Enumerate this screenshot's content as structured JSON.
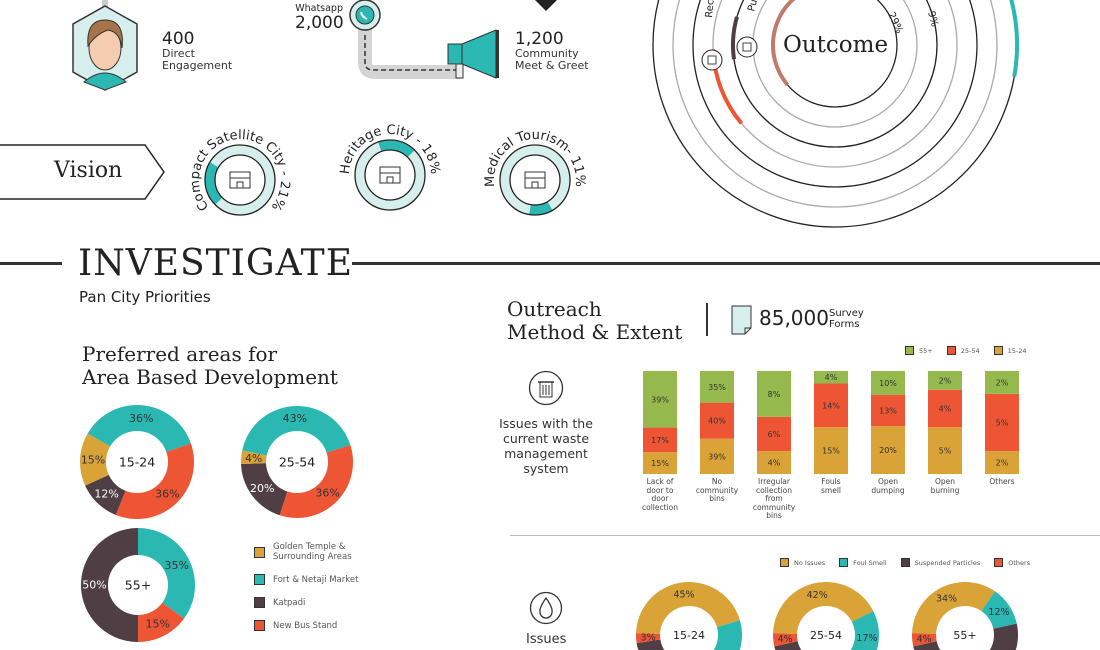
{
  "colors": {
    "teal": "#2bb8b3",
    "red": "#ee5535",
    "gold": "#d9a338",
    "dark": "#4f3e44",
    "green": "#96b94d",
    "light_teal": "#d6efec",
    "ink": "#222222"
  },
  "engagement": {
    "direct": {
      "value": "400",
      "label_line1": "Direct",
      "label_line2": "Engagement",
      "icon": "person-avatar-icon"
    },
    "whatsapp": {
      "label": "Whatsapp",
      "value": "2,000",
      "icon": "whatsapp-icon"
    },
    "community": {
      "value": "1,200",
      "label_line1": "Community",
      "label_line2": "Meet & Greet",
      "icon": "megaphone-icon"
    }
  },
  "vision": {
    "label": "Vision",
    "items": [
      {
        "label": "Compact Satellite City - 21%",
        "percent": 21,
        "icon": "row-houses-icon"
      },
      {
        "label": "Heritage City - 18%",
        "percent": 18,
        "icon": "heritage-building-icon"
      },
      {
        "label": "Medical Tourism- 11%",
        "percent": 11,
        "icon": "hospital-icon"
      }
    ]
  },
  "outcome": {
    "title": "Outcome",
    "ring_labels": [
      "Recrea",
      "Publi",
      "29%",
      "9%"
    ],
    "icons": [
      "building-icon",
      "toilet-icon"
    ]
  },
  "investigate": {
    "title": "INVESTIGATE",
    "subtitle": "Pan City Priorities"
  },
  "abd": {
    "title_line1": "Preferred areas for",
    "title_line2": "Area Based Development",
    "legend": [
      "Golden Temple & Surrounding Areas",
      "Fort & Netaji Market",
      "Katpadi",
      "New Bus Stand"
    ],
    "legend_line1": "Golden Temple &",
    "legend_line2": "Surrounding Areas"
  },
  "outreach": {
    "title_line1": "Outreach",
    "title_line2": "Method & Extent",
    "forms_value": "85,000",
    "forms_line1": "Survey",
    "forms_line2": "Forms",
    "icon": "document-icon"
  },
  "waste": {
    "label_lines": [
      "Issues with the",
      "current waste",
      "management",
      "system"
    ],
    "icon": "trash-icon"
  },
  "water": {
    "label": "Issues",
    "icon": "water-drop-icon"
  },
  "chart_data": [
    {
      "type": "bar",
      "stacked": true,
      "normalized": true,
      "categories": [
        "Lack of door to door collection",
        "No community bins",
        "Irregular collection from community bins",
        "Fouls smell",
        "Open dumping",
        "Open burning",
        "Others"
      ],
      "category_lines": [
        [
          "Lack of",
          "door to",
          "door",
          "collection"
        ],
        [
          "No",
          "community",
          "bins"
        ],
        [
          "Irregular",
          "collection",
          "from",
          "community",
          "bins"
        ],
        [
          "Fouls",
          "smell"
        ],
        [
          "Open",
          "dumping"
        ],
        [
          "Open",
          "burning"
        ],
        [
          "Others"
        ]
      ],
      "series": [
        {
          "name": "15-24",
          "color": "#d9a338",
          "values": [
            15,
            39,
            4,
            15,
            20,
            5,
            2
          ]
        },
        {
          "name": "25-54",
          "color": "#ee5535",
          "values": [
            17,
            40,
            6,
            14,
            13,
            4,
            5
          ]
        },
        {
          "name": "55+",
          "color": "#96b94d",
          "values": [
            39,
            35,
            8,
            4,
            10,
            2,
            2
          ]
        }
      ],
      "legend_order": [
        "55+",
        "25-54",
        "15-24"
      ],
      "legend": "top-right"
    },
    {
      "type": "pie",
      "donut": true,
      "center_label": "15-24",
      "slices": [
        {
          "name": "Fort & Netaji Market",
          "value": 36,
          "color": "#2bb8b3"
        },
        {
          "name": "New Bus Stand",
          "value": 36,
          "color": "#ee5535"
        },
        {
          "name": "Katpadi",
          "value": 12,
          "color": "#4f3e44"
        },
        {
          "name": "Golden Temple & Surrounding Areas",
          "value": 15,
          "color": "#d9a338"
        }
      ]
    },
    {
      "type": "pie",
      "donut": true,
      "center_label": "25-54",
      "slices": [
        {
          "name": "Fort & Netaji Market",
          "value": 43,
          "color": "#2bb8b3"
        },
        {
          "name": "New Bus Stand",
          "value": 36,
          "color": "#ee5535"
        },
        {
          "name": "Katpadi",
          "value": 20,
          "color": "#4f3e44"
        },
        {
          "name": "Golden Temple & Surrounding Areas",
          "value": 4,
          "color": "#d9a338"
        }
      ]
    },
    {
      "type": "pie",
      "donut": true,
      "center_label": "55+",
      "slices": [
        {
          "name": "Fort & Netaji Market",
          "value": 35,
          "color": "#2bb8b3"
        },
        {
          "name": "New Bus Stand",
          "value": 15,
          "color": "#ee5535"
        },
        {
          "name": "Katpadi",
          "value": 50,
          "color": "#4f3e44"
        }
      ]
    },
    {
      "type": "pie",
      "donut": true,
      "center_label": "15-24",
      "legend": [
        "No Issues",
        "Foul Smell",
        "Suspended Particles",
        "Others"
      ],
      "slices": [
        {
          "name": "No Issues",
          "value": 45,
          "color": "#d9a338"
        },
        {
          "name": "Foul Smell",
          "value": 23,
          "color": "#2bb8b3"
        },
        {
          "name": "Suspended Particles",
          "value": null,
          "color": "#4f3e44"
        },
        {
          "name": "Others",
          "value": 3,
          "color": "#ee5535"
        }
      ]
    },
    {
      "type": "pie",
      "donut": true,
      "center_label": "25-54",
      "slices": [
        {
          "name": "No Issues",
          "value": 42,
          "color": "#d9a338"
        },
        {
          "name": "Foul Smell",
          "value": 17,
          "color": "#2bb8b3"
        },
        {
          "name": "Suspended Particles",
          "value": null,
          "color": "#4f3e44"
        },
        {
          "name": "Others",
          "value": 4,
          "color": "#ee5535"
        }
      ]
    },
    {
      "type": "pie",
      "donut": true,
      "center_label": "55+",
      "slices": [
        {
          "name": "No Issues",
          "value": 34,
          "color": "#d9a338"
        },
        {
          "name": "Foul Smell",
          "value": 12,
          "color": "#2bb8b3"
        },
        {
          "name": "Suspended Particles",
          "value": null,
          "color": "#4f3e44"
        },
        {
          "name": "Others",
          "value": 4,
          "color": "#ee5535"
        }
      ]
    }
  ]
}
